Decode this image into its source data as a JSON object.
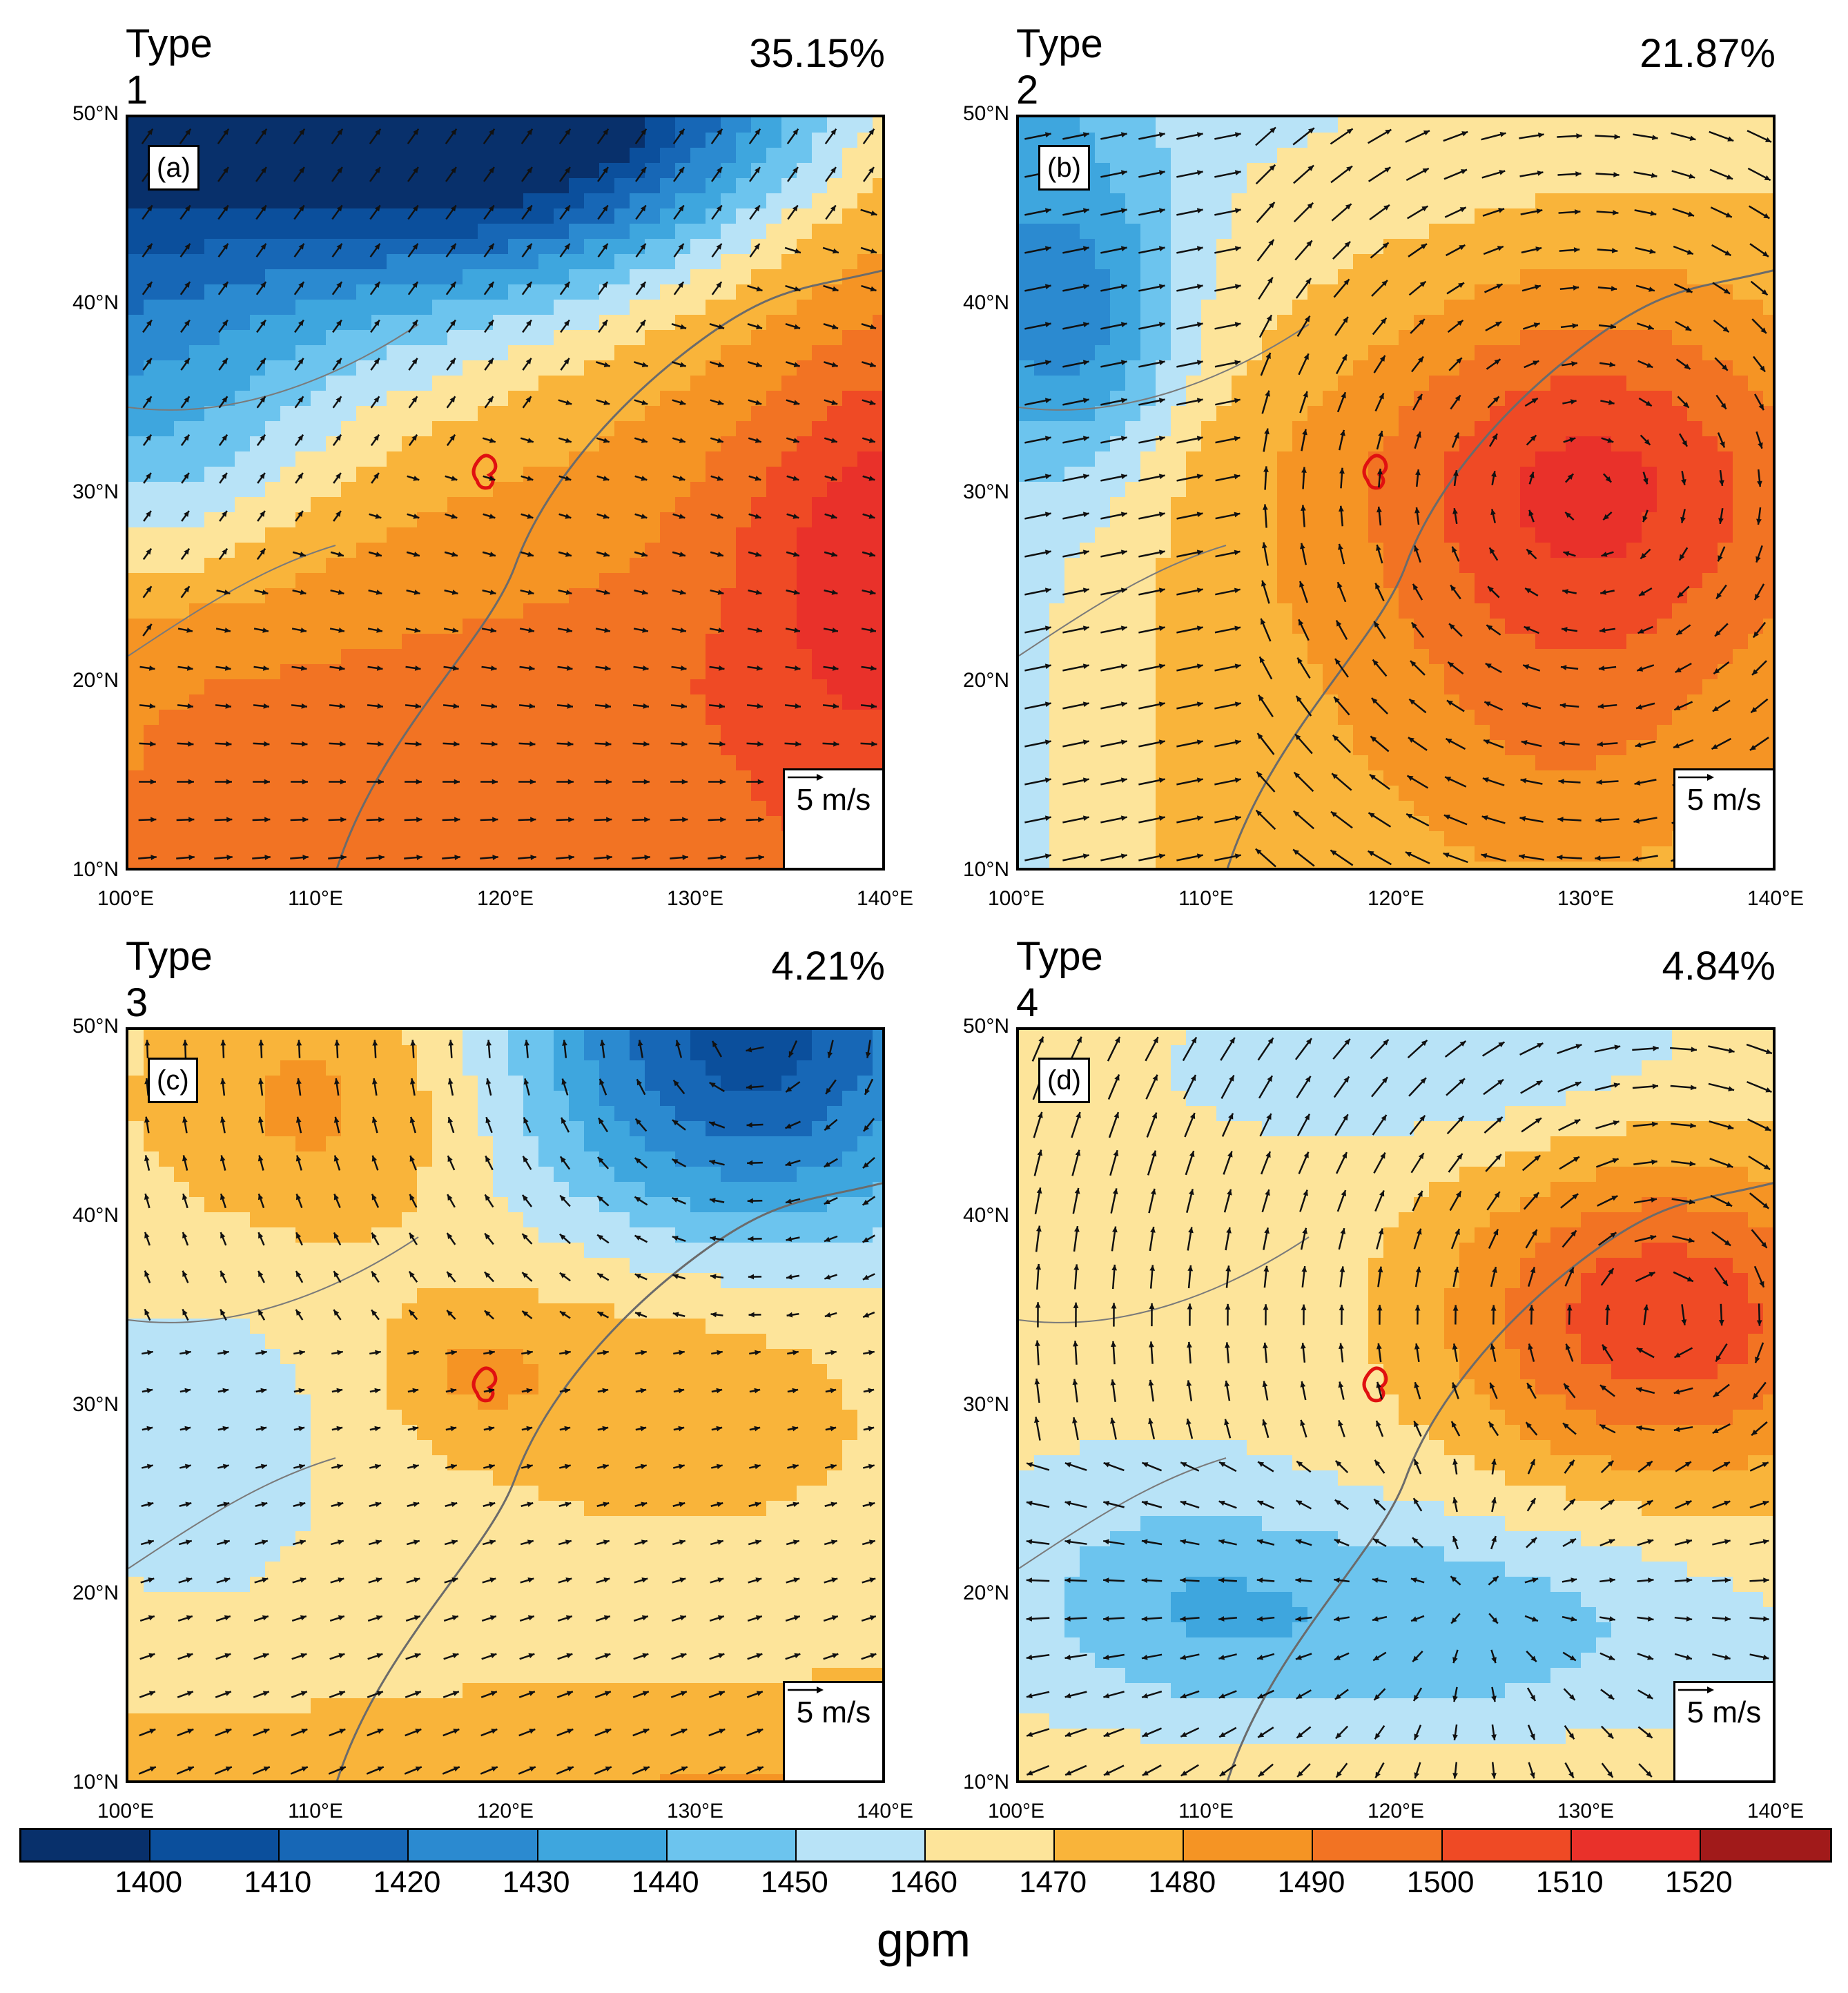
{
  "panels": [
    {
      "title": "Type 1",
      "percent": "35.15%",
      "tag": "(a)",
      "ref_label": "5 m/s",
      "regime": 1
    },
    {
      "title": "Type 2",
      "percent": "21.87%",
      "tag": "(b)",
      "ref_label": "5 m/s",
      "regime": 2
    },
    {
      "title": "Type 3",
      "percent": "4.21%",
      "tag": "(c)",
      "ref_label": "5 m/s",
      "regime": 3
    },
    {
      "title": "Type 4",
      "percent": "4.84%",
      "tag": "(d)",
      "ref_label": "5 m/s",
      "regime": 4
    }
  ],
  "axes": {
    "lat_labels": [
      "50°N",
      "40°N",
      "30°N",
      "20°N",
      "10°N"
    ],
    "lon_labels": [
      "100°E",
      "110°E",
      "120°E",
      "130°E",
      "140°E"
    ]
  },
  "colorbar": {
    "labels": [
      "1400",
      "1410",
      "1420",
      "1430",
      "1440",
      "1450",
      "1460",
      "1470",
      "1480",
      "1490",
      "1500",
      "1510",
      "1520"
    ],
    "colors": [
      "#08306b",
      "#0b4f9c",
      "#1767b6",
      "#2b8ad0",
      "#3ea6de",
      "#6cc4ee",
      "#b8e3f7",
      "#fde49a",
      "#f9b43a",
      "#f59424",
      "#f27323",
      "#ef4a25",
      "#e9312a",
      "#a11a1a"
    ],
    "unit": "gpm"
  }
}
